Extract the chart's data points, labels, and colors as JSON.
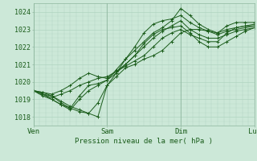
{
  "title": "Pression niveau de la mer( hPa )",
  "bg_color": "#cce8d8",
  "grid_color_fine": "#b0d4c0",
  "grid_color_coarse": "#90b8a0",
  "line_color": "#1a5c1a",
  "ylim": [
    1017.5,
    1024.5
  ],
  "xlim": [
    0,
    72
  ],
  "yticks": [
    1018,
    1019,
    1020,
    1021,
    1022,
    1023,
    1024
  ],
  "xtick_positions": [
    0,
    24,
    48,
    72
  ],
  "xtick_labels": [
    "Ven",
    "Sam",
    "Dim",
    "Lun"
  ],
  "series": [
    [
      0,
      1019.5,
      3,
      1019.4,
      6,
      1019.2,
      9,
      1018.9,
      12,
      1018.6,
      15,
      1018.4,
      18,
      1018.2,
      21,
      1018.0,
      24,
      1019.8,
      27,
      1020.5,
      30,
      1021.3,
      33,
      1021.8,
      36,
      1022.3,
      39,
      1022.8,
      42,
      1023.1,
      45,
      1023.5,
      48,
      1024.2,
      51,
      1023.8,
      54,
      1023.3,
      57,
      1023.0,
      60,
      1022.8,
      63,
      1023.0,
      66,
      1023.1,
      69,
      1023.2,
      72,
      1023.2
    ],
    [
      0,
      1019.5,
      3,
      1019.3,
      6,
      1019.0,
      9,
      1018.7,
      12,
      1018.4,
      15,
      1019.0,
      18,
      1019.5,
      21,
      1019.8,
      24,
      1020.1,
      27,
      1020.5,
      30,
      1021.0,
      33,
      1021.5,
      36,
      1022.0,
      39,
      1022.5,
      42,
      1022.9,
      45,
      1023.2,
      48,
      1023.5,
      51,
      1023.0,
      54,
      1022.7,
      57,
      1022.5,
      60,
      1022.5,
      63,
      1022.7,
      66,
      1022.9,
      69,
      1023.0,
      72,
      1023.1
    ],
    [
      0,
      1019.5,
      3,
      1019.4,
      6,
      1019.3,
      9,
      1019.5,
      12,
      1019.8,
      15,
      1020.2,
      18,
      1020.5,
      21,
      1020.3,
      24,
      1020.2,
      27,
      1020.6,
      30,
      1021.0,
      33,
      1021.5,
      36,
      1022.2,
      39,
      1022.7,
      42,
      1023.0,
      45,
      1023.1,
      48,
      1023.2,
      51,
      1022.8,
      54,
      1022.3,
      57,
      1022.0,
      60,
      1022.0,
      63,
      1022.3,
      66,
      1022.6,
      69,
      1022.9,
      72,
      1023.1
    ],
    [
      0,
      1019.5,
      3,
      1019.3,
      6,
      1019.1,
      9,
      1019.3,
      12,
      1019.5,
      15,
      1019.8,
      18,
      1020.0,
      21,
      1020.2,
      24,
      1020.3,
      27,
      1020.6,
      30,
      1020.9,
      33,
      1021.2,
      36,
      1021.5,
      39,
      1022.0,
      42,
      1022.5,
      45,
      1022.8,
      48,
      1023.0,
      51,
      1022.7,
      54,
      1022.5,
      57,
      1022.3,
      60,
      1022.3,
      63,
      1022.8,
      66,
      1023.1,
      69,
      1023.2,
      72,
      1023.3
    ],
    [
      0,
      1019.5,
      3,
      1019.2,
      6,
      1019.0,
      9,
      1018.7,
      12,
      1018.5,
      15,
      1018.3,
      18,
      1018.2,
      21,
      1018.8,
      24,
      1019.8,
      27,
      1020.3,
      30,
      1020.8,
      33,
      1021.0,
      36,
      1021.3,
      39,
      1021.5,
      42,
      1021.8,
      45,
      1022.3,
      48,
      1022.8,
      51,
      1023.0,
      54,
      1023.0,
      57,
      1022.9,
      60,
      1022.8,
      63,
      1023.2,
      66,
      1023.4,
      69,
      1023.4,
      72,
      1023.4
    ],
    [
      0,
      1019.5,
      3,
      1019.3,
      6,
      1019.2,
      9,
      1018.8,
      12,
      1018.5,
      15,
      1019.2,
      18,
      1019.8,
      21,
      1019.9,
      24,
      1020.1,
      27,
      1020.7,
      30,
      1021.3,
      33,
      1022.0,
      36,
      1022.8,
      39,
      1023.3,
      42,
      1023.5,
      45,
      1023.6,
      48,
      1023.8,
      51,
      1023.4,
      54,
      1023.1,
      57,
      1022.9,
      60,
      1022.7,
      63,
      1022.9,
      66,
      1023.0,
      69,
      1023.1,
      72,
      1023.2
    ]
  ]
}
